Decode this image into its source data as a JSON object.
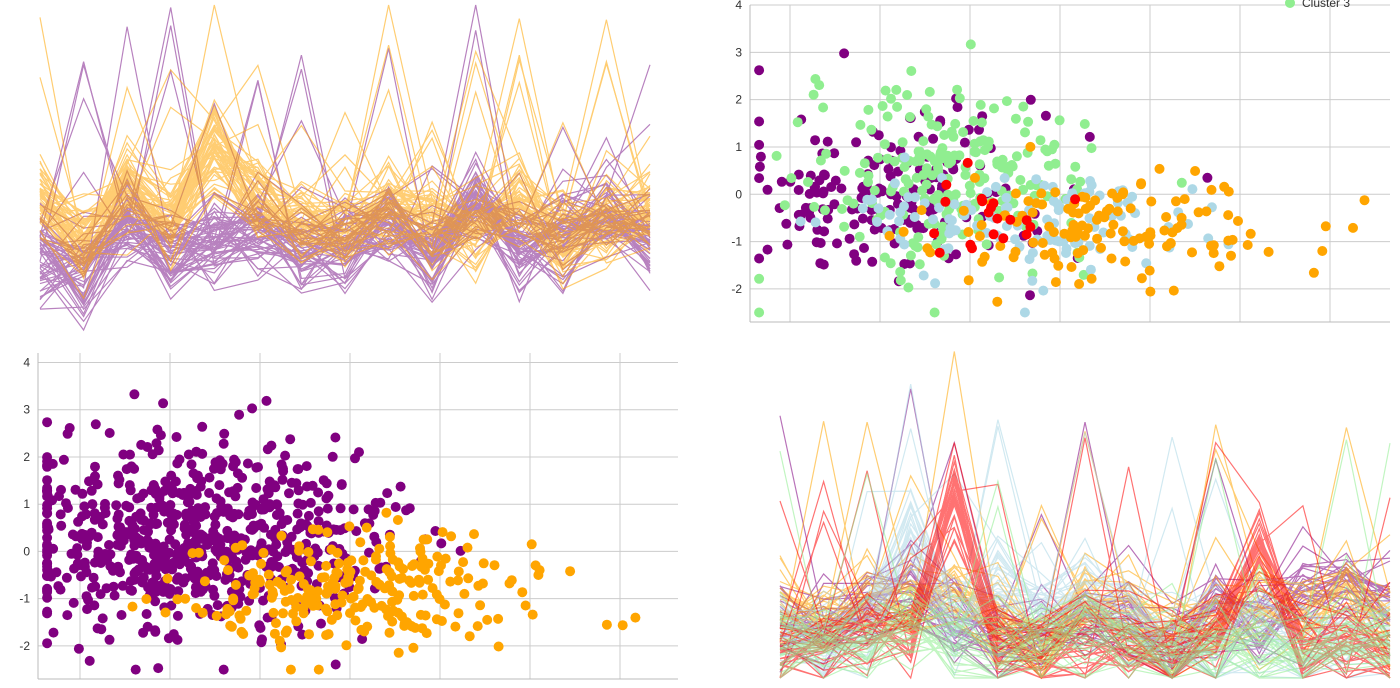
{
  "chart_data": [
    {
      "type": "line",
      "kind": "parallel-coordinates",
      "title": "",
      "series_colors": [
        "#7f1d8c",
        "#ffa500"
      ],
      "n_axes": 15,
      "lines_per_series": 60
    },
    {
      "type": "scatter",
      "title": "",
      "xlabel": "",
      "ylabel": "",
      "ylim": [
        -2.7,
        4.0
      ],
      "yticks": [
        "-2",
        "-1",
        "0",
        "1",
        "2",
        "3",
        "4"
      ],
      "grid": true,
      "legend": {
        "position": "top-right",
        "entries": [
          "Cluster 3"
        ]
      },
      "series": [
        {
          "color": "#800080",
          "center": [
            -0.7,
            0.0
          ],
          "spread": [
            0.9,
            0.9
          ],
          "count": 180
        },
        {
          "color": "#90ee90",
          "center": [
            0.0,
            0.4
          ],
          "spread": [
            0.8,
            0.9
          ],
          "count": 220
        },
        {
          "color": "#add8e6",
          "center": [
            0.8,
            -0.6
          ],
          "spread": [
            1.0,
            0.6
          ],
          "count": 120
        },
        {
          "color": "#ffa500",
          "center": [
            1.8,
            -0.7
          ],
          "spread": [
            1.0,
            0.6
          ],
          "count": 130
        },
        {
          "color": "#ff0000",
          "center": [
            0.3,
            -0.3
          ],
          "spread": [
            0.4,
            0.4
          ],
          "count": 20
        }
      ]
    },
    {
      "type": "scatter",
      "title": "",
      "xlabel": "",
      "ylabel": "",
      "ylim": [
        -2.7,
        4.2
      ],
      "yticks": [
        "-2",
        "-1",
        "0",
        "1",
        "2",
        "3",
        "4"
      ],
      "grid": true,
      "series": [
        {
          "color": "#800080",
          "center": [
            -0.5,
            0.3
          ],
          "spread": [
            1.0,
            1.0
          ],
          "count": 700
        },
        {
          "color": "#ffa500",
          "center": [
            1.4,
            -0.8
          ],
          "spread": [
            1.0,
            0.6
          ],
          "count": 260
        }
      ]
    },
    {
      "type": "line",
      "kind": "parallel-coordinates",
      "title": "",
      "series_colors": [
        "#800080",
        "#ffa500",
        "#add8e6",
        "#ff0000",
        "#90ee90"
      ],
      "n_axes": 15,
      "lines_per_series": 30
    }
  ]
}
